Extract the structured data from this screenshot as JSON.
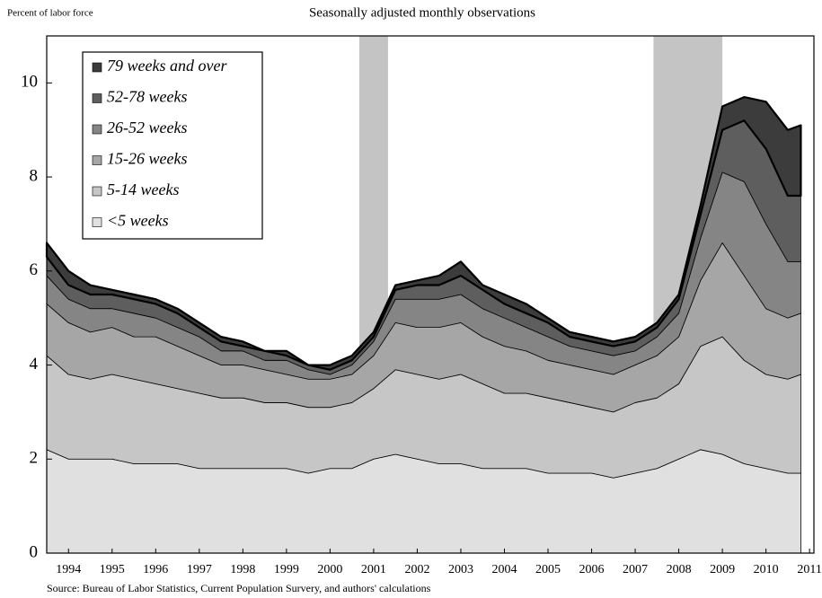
{
  "chart_data": {
    "type": "stacked_area",
    "title": "Seasonally adjusted monthly observations",
    "y_label": "Percent of labor force",
    "source": "Source: Bureau of Labor Statistics, Current Population Survery, and authors' calculations",
    "x": [
      1994.0,
      1994.5,
      1995.0,
      1995.5,
      1996.0,
      1996.5,
      1997.0,
      1997.5,
      1998.0,
      1998.5,
      1999.0,
      1999.5,
      2000.0,
      2000.5,
      2001.0,
      2001.5,
      2002.0,
      2002.5,
      2003.0,
      2003.5,
      2004.0,
      2004.5,
      2005.0,
      2005.5,
      2006.0,
      2006.5,
      2007.0,
      2007.5,
      2008.0,
      2008.5,
      2009.0,
      2009.5,
      2010.0,
      2010.5,
      2011.0,
      2011.3
    ],
    "series": [
      {
        "name": "<5 weeks",
        "color": "#e0e0e0",
        "values": [
          2.2,
          2.0,
          2.0,
          2.0,
          1.9,
          1.9,
          1.9,
          1.8,
          1.8,
          1.8,
          1.8,
          1.8,
          1.7,
          1.8,
          1.8,
          2.0,
          2.1,
          2.0,
          1.9,
          1.9,
          1.8,
          1.8,
          1.8,
          1.7,
          1.7,
          1.7,
          1.6,
          1.7,
          1.8,
          2.0,
          2.2,
          2.1,
          1.9,
          1.8,
          1.7,
          1.7
        ]
      },
      {
        "name": "5-14 weeks",
        "color": "#c6c6c6",
        "values": [
          2.0,
          1.8,
          1.7,
          1.8,
          1.8,
          1.7,
          1.6,
          1.6,
          1.5,
          1.5,
          1.4,
          1.4,
          1.4,
          1.3,
          1.4,
          1.5,
          1.8,
          1.8,
          1.8,
          1.9,
          1.8,
          1.6,
          1.6,
          1.6,
          1.5,
          1.4,
          1.4,
          1.5,
          1.5,
          1.6,
          2.2,
          2.5,
          2.2,
          2.0,
          2.0,
          2.1
        ]
      },
      {
        "name": "15-26 weeks",
        "color": "#a6a6a6",
        "values": [
          1.1,
          1.1,
          1.0,
          1.0,
          0.9,
          1.0,
          0.9,
          0.8,
          0.7,
          0.7,
          0.7,
          0.6,
          0.6,
          0.6,
          0.6,
          0.7,
          1.0,
          1.0,
          1.1,
          1.1,
          1.0,
          1.0,
          0.9,
          0.8,
          0.8,
          0.8,
          0.8,
          0.8,
          0.9,
          1.0,
          1.4,
          2.0,
          1.8,
          1.4,
          1.3,
          1.3
        ]
      },
      {
        "name": "26-52 weeks",
        "color": "#858585",
        "values": [
          0.6,
          0.5,
          0.5,
          0.4,
          0.5,
          0.4,
          0.4,
          0.4,
          0.3,
          0.3,
          0.2,
          0.3,
          0.2,
          0.1,
          0.2,
          0.3,
          0.5,
          0.6,
          0.6,
          0.6,
          0.6,
          0.6,
          0.5,
          0.5,
          0.4,
          0.4,
          0.4,
          0.3,
          0.4,
          0.5,
          0.9,
          1.5,
          2.0,
          1.8,
          1.2,
          1.1
        ]
      },
      {
        "name": "52-78 weeks",
        "color": "#5e5e5e",
        "values": [
          0.4,
          0.3,
          0.3,
          0.3,
          0.3,
          0.3,
          0.3,
          0.2,
          0.2,
          0.1,
          0.2,
          0.1,
          0.1,
          0.1,
          0.1,
          0.1,
          0.2,
          0.3,
          0.3,
          0.4,
          0.4,
          0.3,
          0.3,
          0.3,
          0.2,
          0.2,
          0.2,
          0.2,
          0.2,
          0.3,
          0.5,
          0.9,
          1.3,
          1.6,
          1.4,
          1.4
        ]
      },
      {
        "name": "79 weeks and over",
        "color": "#3c3c3c",
        "values": [
          0.3,
          0.3,
          0.2,
          0.1,
          0.1,
          0.1,
          0.1,
          0.1,
          0.1,
          0.1,
          0.0,
          0.1,
          0.0,
          0.1,
          0.1,
          0.1,
          0.1,
          0.1,
          0.2,
          0.3,
          0.1,
          0.2,
          0.2,
          0.1,
          0.1,
          0.1,
          0.1,
          0.1,
          0.1,
          0.1,
          0.2,
          0.5,
          0.5,
          1.0,
          1.4,
          1.5
        ]
      }
    ],
    "shaded_periods": [
      [
        2001.17,
        2001.83
      ],
      [
        2007.92,
        2009.5
      ]
    ],
    "shade_color": "#c4c4c4",
    "xlim": [
      1994.0,
      2011.6
    ],
    "ylim": [
      0,
      11
    ],
    "yticks": [
      0,
      2,
      4,
      6,
      8,
      10
    ],
    "xticks": [
      {
        "value": 1994.5,
        "label": "1994"
      },
      {
        "value": 1995.5,
        "label": "1995"
      },
      {
        "value": 1996.5,
        "label": "1996"
      },
      {
        "value": 1997.5,
        "label": "1997"
      },
      {
        "value": 1998.5,
        "label": "1998"
      },
      {
        "value": 1999.5,
        "label": "1999"
      },
      {
        "value": 2000.5,
        "label": "2000"
      },
      {
        "value": 2001.5,
        "label": "2001"
      },
      {
        "value": 2002.5,
        "label": "2002"
      },
      {
        "value": 2003.5,
        "label": "2003"
      },
      {
        "value": 2004.5,
        "label": "2004"
      },
      {
        "value": 2005.5,
        "label": "2005"
      },
      {
        "value": 2006.5,
        "label": "2006"
      },
      {
        "value": 2007.5,
        "label": "2007"
      },
      {
        "value": 2008.5,
        "label": "2008"
      },
      {
        "value": 2009.5,
        "label": "2009"
      },
      {
        "value": 2010.5,
        "label": "2010"
      },
      {
        "value": 2011.5,
        "label": "2011"
      }
    ],
    "legend": "upper left"
  }
}
